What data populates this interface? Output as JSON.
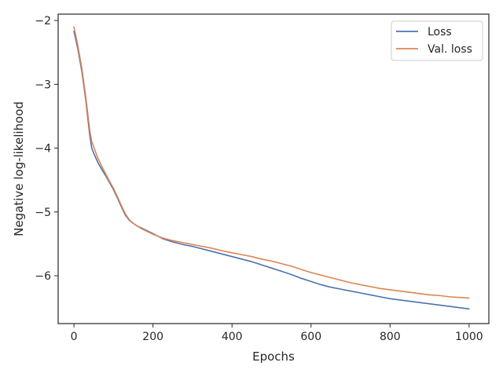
{
  "chart_data": {
    "type": "line",
    "title": "",
    "xlabel": "Epochs",
    "ylabel": "Negative log-likelihood",
    "xlim": [
      -40,
      1050
    ],
    "ylim": [
      -6.75,
      -1.9
    ],
    "xticks": [
      0,
      200,
      400,
      600,
      800,
      1000
    ],
    "yticks": [
      -2,
      -3,
      -4,
      -5,
      -6
    ],
    "grid": false,
    "legend_position": "top-right",
    "series": [
      {
        "name": "Loss",
        "color": "#4c72b0",
        "x": [
          0,
          10,
          20,
          30,
          40,
          45,
          50,
          60,
          70,
          80,
          90,
          100,
          110,
          120,
          130,
          140,
          150,
          160,
          170,
          180,
          190,
          200,
          225,
          250,
          275,
          300,
          325,
          350,
          375,
          400,
          425,
          450,
          475,
          500,
          525,
          550,
          575,
          600,
          625,
          650,
          675,
          700,
          725,
          750,
          775,
          800,
          825,
          850,
          875,
          900,
          925,
          950,
          975,
          1000
        ],
        "y": [
          -2.17,
          -2.45,
          -2.8,
          -3.25,
          -3.8,
          -4.0,
          -4.08,
          -4.22,
          -4.33,
          -4.43,
          -4.54,
          -4.65,
          -4.78,
          -4.92,
          -5.05,
          -5.13,
          -5.18,
          -5.22,
          -5.25,
          -5.28,
          -5.31,
          -5.34,
          -5.42,
          -5.47,
          -5.51,
          -5.54,
          -5.58,
          -5.62,
          -5.66,
          -5.7,
          -5.74,
          -5.78,
          -5.83,
          -5.88,
          -5.93,
          -5.98,
          -6.04,
          -6.09,
          -6.14,
          -6.18,
          -6.21,
          -6.24,
          -6.27,
          -6.3,
          -6.33,
          -6.36,
          -6.38,
          -6.4,
          -6.42,
          -6.44,
          -6.46,
          -6.48,
          -6.5,
          -6.52
        ]
      },
      {
        "name": "Val. loss",
        "color": "#dd8452",
        "x": [
          0,
          10,
          20,
          30,
          40,
          45,
          50,
          60,
          70,
          80,
          90,
          100,
          110,
          120,
          130,
          140,
          150,
          160,
          170,
          180,
          190,
          200,
          225,
          250,
          275,
          300,
          325,
          350,
          375,
          400,
          425,
          450,
          475,
          500,
          525,
          550,
          575,
          600,
          625,
          650,
          675,
          700,
          725,
          750,
          775,
          800,
          825,
          850,
          875,
          900,
          925,
          950,
          975,
          1000
        ],
        "y": [
          -2.1,
          -2.4,
          -2.75,
          -3.2,
          -3.72,
          -3.9,
          -3.98,
          -4.15,
          -4.28,
          -4.4,
          -4.52,
          -4.63,
          -4.76,
          -4.9,
          -5.03,
          -5.12,
          -5.18,
          -5.22,
          -5.26,
          -5.29,
          -5.32,
          -5.35,
          -5.41,
          -5.45,
          -5.48,
          -5.51,
          -5.54,
          -5.57,
          -5.61,
          -5.64,
          -5.67,
          -5.7,
          -5.74,
          -5.77,
          -5.81,
          -5.85,
          -5.9,
          -5.95,
          -5.99,
          -6.03,
          -6.07,
          -6.11,
          -6.14,
          -6.17,
          -6.2,
          -6.22,
          -6.24,
          -6.26,
          -6.28,
          -6.3,
          -6.31,
          -6.33,
          -6.34,
          -6.35
        ]
      }
    ]
  }
}
